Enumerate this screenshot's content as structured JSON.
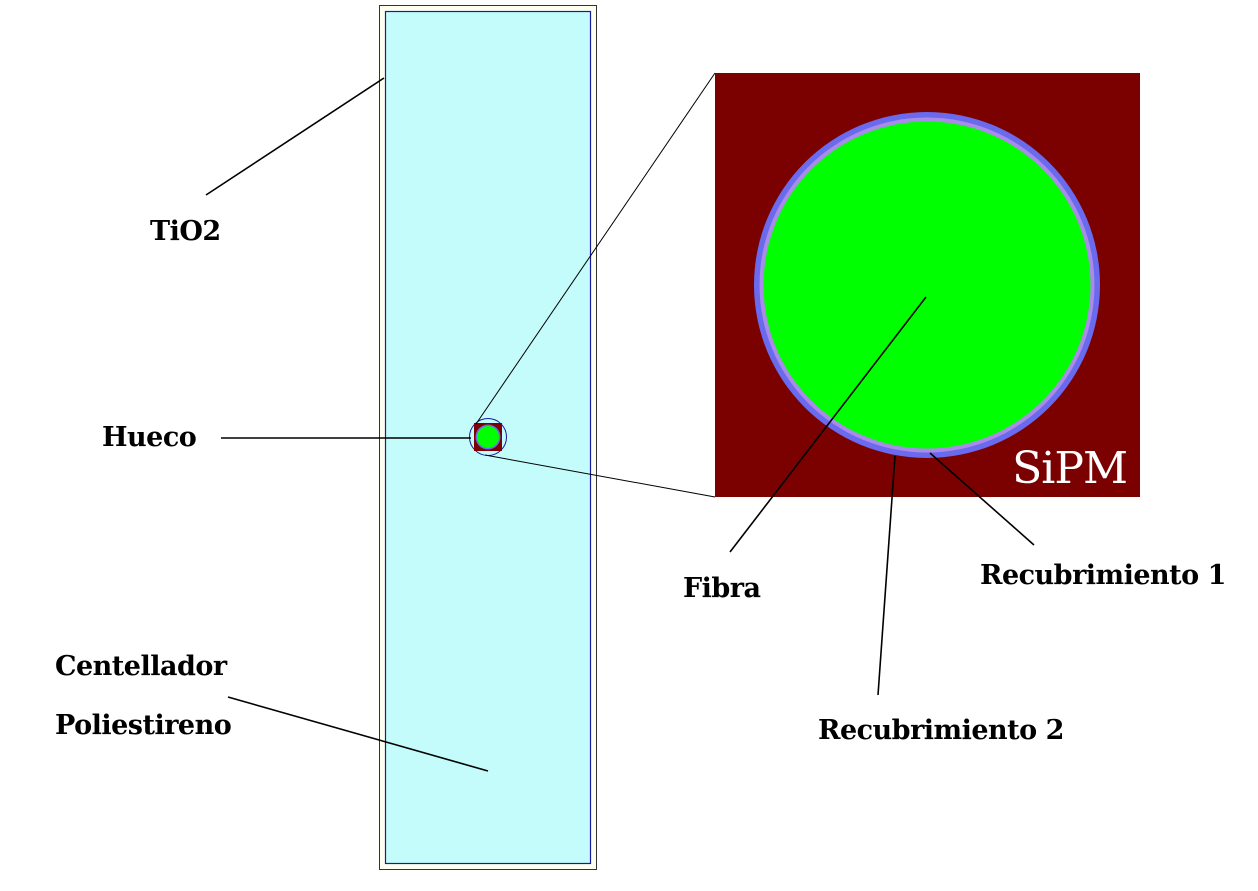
{
  "labels": {
    "tio2": "TiO2",
    "hueco": "Hueco",
    "centellador_line1": "Centellador",
    "centellador_line2": "Poliestireno",
    "sipm": "SiPM",
    "fibra": "Fibra",
    "recubrimiento1": "Recubrimiento 1",
    "recubrimiento2": "Recubrimiento 2"
  },
  "colors": {
    "outer_frame": "#fffff0",
    "scintillator": "#c4fbfb",
    "inner_border": "#1a1aa0",
    "sipm_background": "#7b0000",
    "cladding_outer": "#6a6aee",
    "cladding_inner": "#a98be8",
    "fiber_core": "#00ff00",
    "leader_lines": "#000000",
    "sipm_text": "#ffffff"
  }
}
